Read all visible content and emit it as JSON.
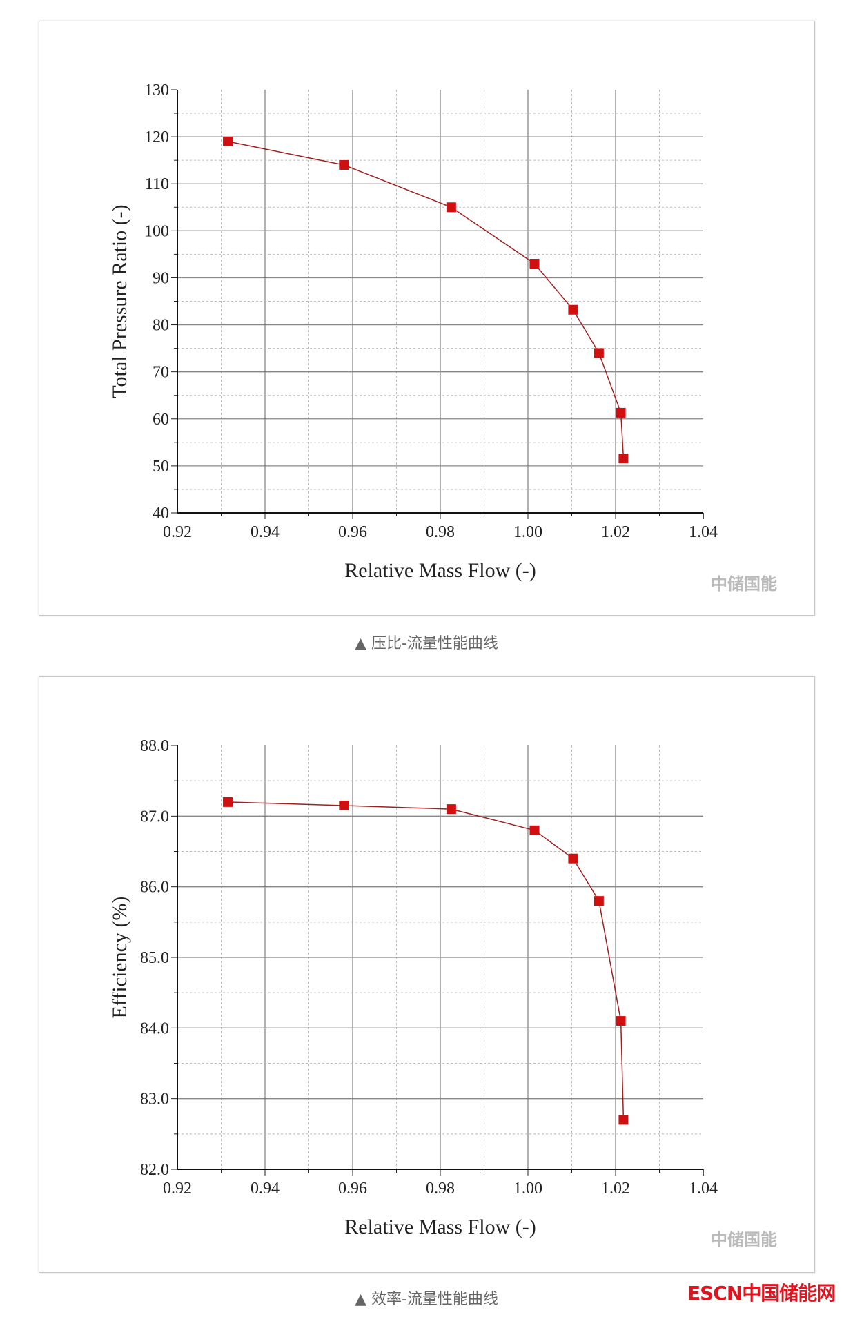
{
  "charts": [
    {
      "caption": "▲ 压比-流量性能曲线",
      "watermark": "中储国能",
      "chart_data": {
        "type": "line",
        "xlabel": "Relative Mass Flow (-)",
        "ylabel": "Total Pressure Ratio (-)",
        "xlim": [
          0.92,
          1.04
        ],
        "ylim": [
          40,
          130
        ],
        "xticks": [
          "0.92",
          "0.94",
          "0.96",
          "0.98",
          "1.00",
          "1.02",
          "1.04"
        ],
        "yticks": [
          "40",
          "50",
          "60",
          "70",
          "80",
          "90",
          "100",
          "110",
          "120",
          "130"
        ],
        "grid": true,
        "marker": "square",
        "color": "#d01010",
        "x": [
          0.9315,
          0.958,
          0.9825,
          1.0015,
          1.0103,
          1.0162,
          1.0212,
          1.0218
        ],
        "y": [
          119,
          114,
          105,
          93,
          83.2,
          74,
          61.3,
          51.6
        ]
      }
    },
    {
      "caption": "▲ 效率-流量性能曲线",
      "watermark": "中储国能",
      "chart_data": {
        "type": "line",
        "xlabel": "Relative Mass Flow (-)",
        "ylabel": "Efficiency (%)",
        "xlim": [
          0.92,
          1.04
        ],
        "ylim": [
          82.0,
          88.0
        ],
        "xticks": [
          "0.92",
          "0.94",
          "0.96",
          "0.98",
          "1.00",
          "1.02",
          "1.04"
        ],
        "yticks": [
          "82.0",
          "83.0",
          "84.0",
          "85.0",
          "86.0",
          "87.0",
          "88.0"
        ],
        "grid": true,
        "marker": "square",
        "color": "#d01010",
        "x": [
          0.9315,
          0.958,
          0.9825,
          1.0015,
          1.0103,
          1.0162,
          1.0212,
          1.0218
        ],
        "y": [
          87.2,
          87.15,
          87.1,
          86.8,
          86.4,
          85.8,
          84.1,
          82.7
        ]
      }
    }
  ],
  "site_logo": "ESCN中国储能网"
}
